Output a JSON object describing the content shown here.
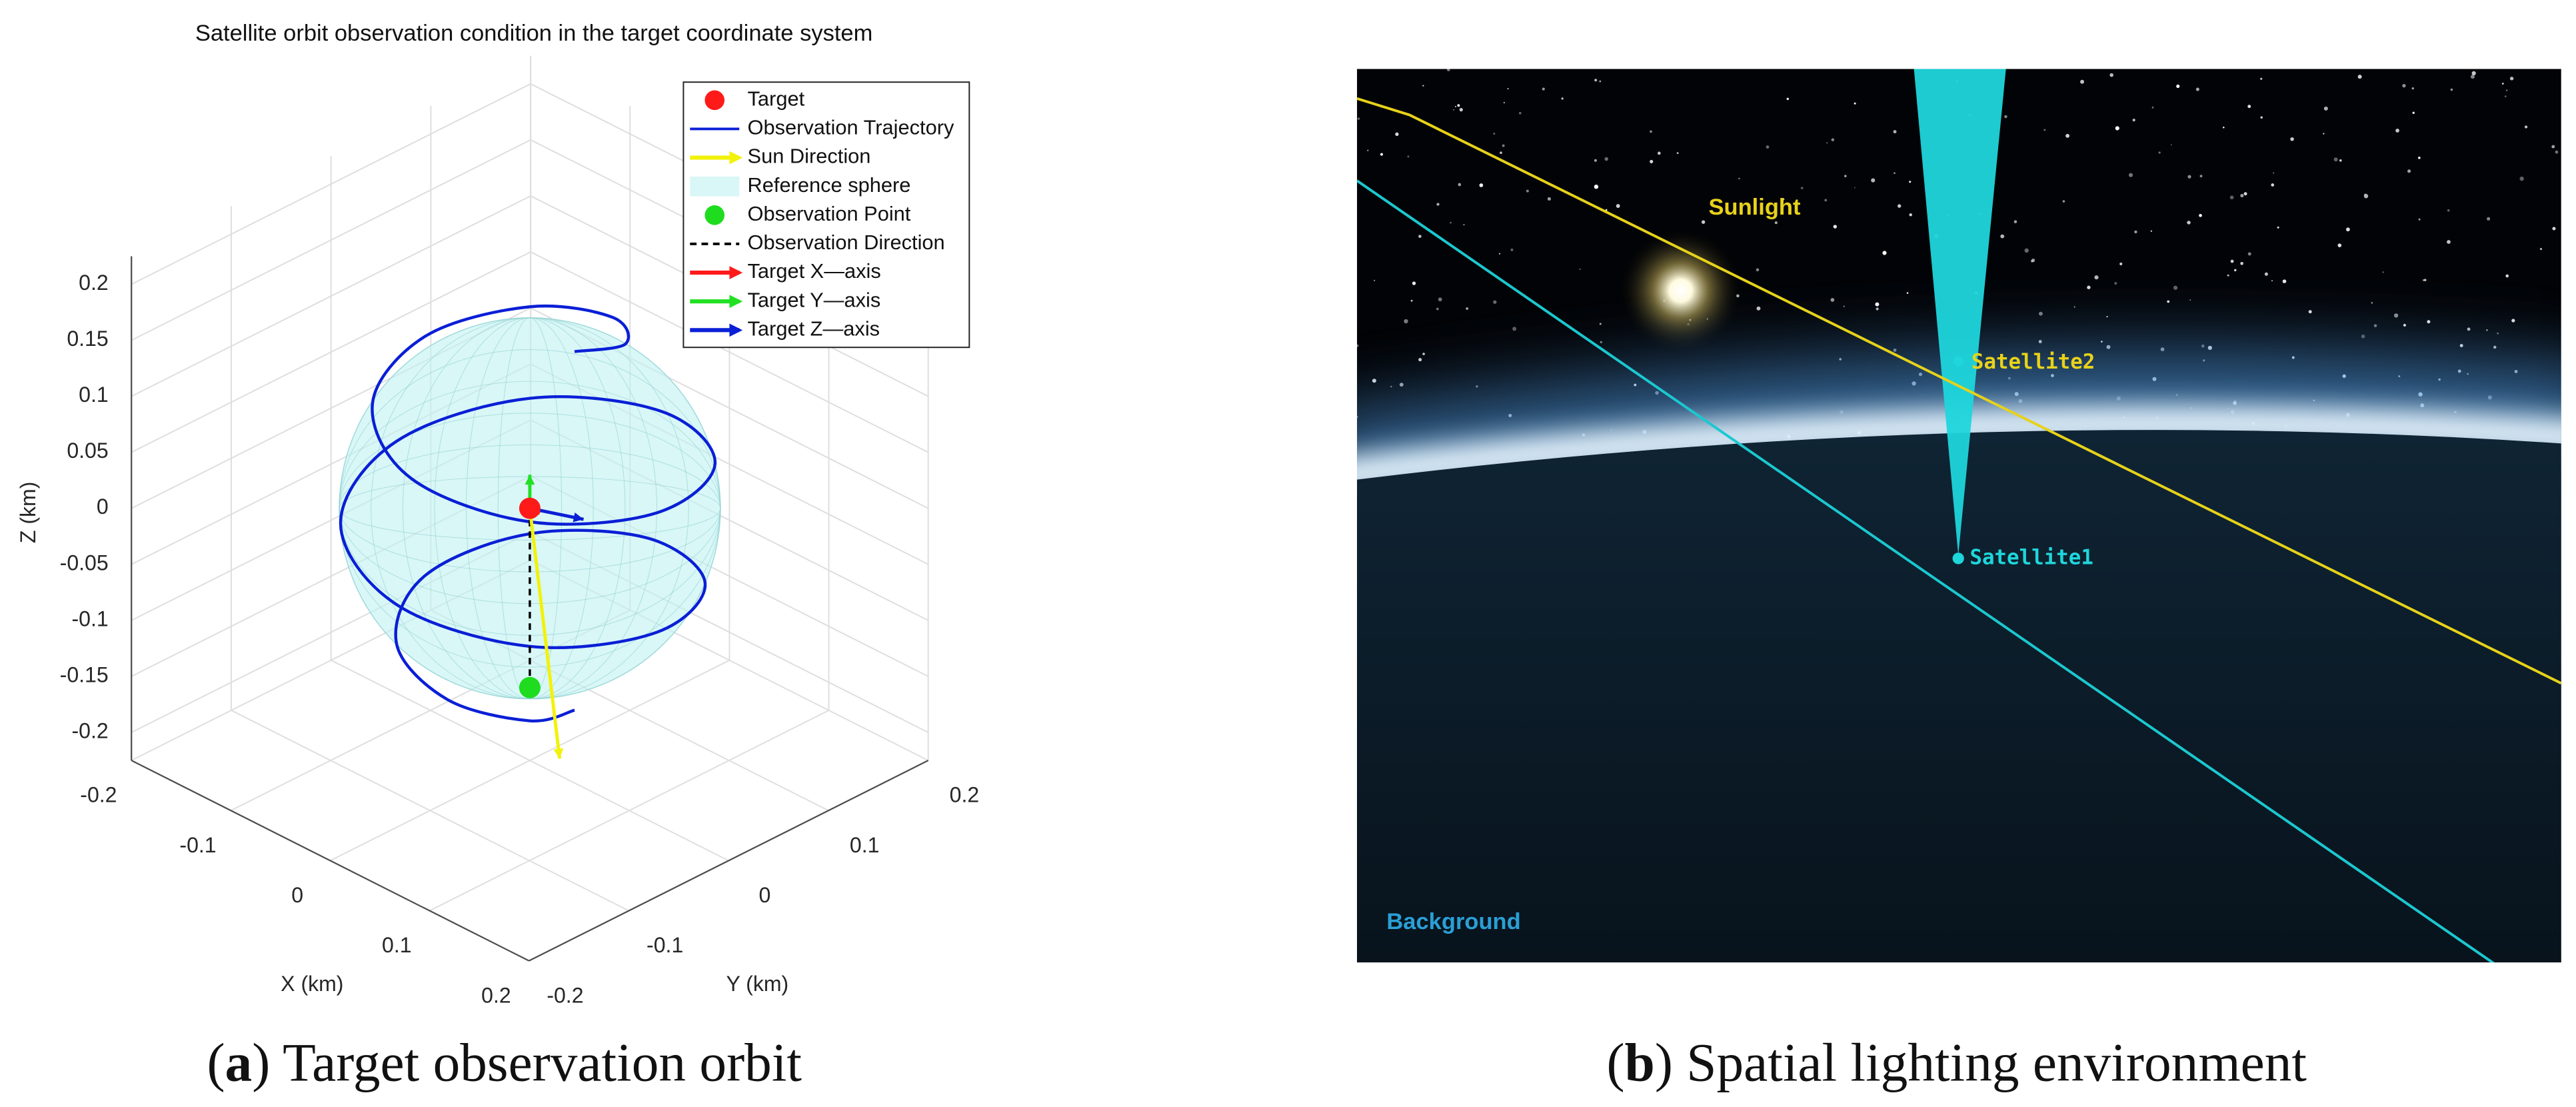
{
  "chart_data": {
    "type": "line3d",
    "title": "Satellite orbit observation condition in the target coordinate system",
    "xlabel": "X (km)",
    "ylabel": "Y (km)",
    "zlabel": "Z (km)",
    "xlim": [
      -0.2,
      0.2
    ],
    "ylim": [
      -0.2,
      0.2
    ],
    "zlim": [
      -0.225,
      0.225
    ],
    "xticks": [
      -0.2,
      -0.1,
      0,
      0.1,
      0.2
    ],
    "yticks": [
      -0.2,
      -0.1,
      0,
      0.1,
      0.2
    ],
    "zticks": [
      -0.2,
      -0.15,
      -0.1,
      -0.05,
      0,
      0.05,
      0.1,
      0.15,
      0.2
    ],
    "grid": true,
    "legend": "northeast",
    "series": [
      {
        "name": "Target",
        "style": "marker",
        "color": "#ff1a1a",
        "x": [
          0
        ],
        "y": [
          0
        ],
        "z": [
          0
        ]
      },
      {
        "name": "Observation Trajectory",
        "style": "line",
        "color": "#0a1fd6",
        "x": [
          0.045,
          0.048,
          0,
          -0.067,
          -0.105,
          -0.079,
          0,
          0.088,
          0.128,
          0.093,
          0,
          -0.095,
          -0.134,
          -0.095,
          0,
          0.093,
          0.128,
          0.088,
          0,
          -0.079,
          -0.105,
          -0.067,
          0,
          0.048,
          0.045
        ],
        "y": [
          0,
          0.048,
          0.083,
          0.067,
          0,
          -0.079,
          -0.119,
          -0.088,
          0,
          0.093,
          0.133,
          0.095,
          0,
          -0.095,
          -0.133,
          -0.093,
          0,
          0.088,
          0.119,
          0.079,
          0,
          -0.067,
          -0.083,
          -0.048,
          0
        ],
        "z": [
          0.16,
          0.1467,
          0.1333,
          0.12,
          0.1067,
          0.0933,
          0.08,
          0.0667,
          0.0533,
          0.04,
          0.0267,
          0.0133,
          0,
          -0.0133,
          -0.0267,
          -0.04,
          -0.0533,
          -0.0667,
          -0.08,
          -0.0933,
          -0.1067,
          -0.12,
          -0.1333,
          -0.1467,
          -0.16
        ]
      },
      {
        "name": "Sun Direction",
        "style": "arrow",
        "color": "#f2f20a",
        "x": [
          0,
          0.03
        ],
        "y": [
          0,
          0
        ],
        "z": [
          0,
          -0.21
        ]
      },
      {
        "name": "Reference sphere",
        "style": "sphere",
        "color": "#bff2f2",
        "x": [
          0
        ],
        "y": [
          0
        ],
        "z": [
          0
        ],
        "radius": 0.17
      },
      {
        "name": "Observation Point",
        "style": "marker",
        "color": "#1fdc1f",
        "x": [
          0
        ],
        "y": [
          0
        ],
        "z": [
          -0.16
        ]
      },
      {
        "name": "Observation Direction",
        "style": "dashed",
        "color": "#000000",
        "x": [
          0,
          0
        ],
        "y": [
          0,
          0
        ],
        "z": [
          0,
          -0.16
        ]
      },
      {
        "name": "Target X—axis",
        "style": "arrow",
        "color": "#ff1a1a",
        "x": [
          0,
          0.01
        ],
        "y": [
          0,
          0
        ],
        "z": [
          0,
          0
        ]
      },
      {
        "name": "Target Y—axis",
        "style": "arrow",
        "color": "#22e022",
        "x": [
          0,
          0
        ],
        "y": [
          0,
          0
        ],
        "z": [
          0,
          0.03
        ]
      },
      {
        "name": "Target Z—axis",
        "style": "arrow",
        "color": "#0a1fd6",
        "x": [
          0,
          0.038
        ],
        "y": [
          0,
          0.016
        ],
        "z": [
          0,
          0
        ]
      }
    ]
  },
  "scene": {
    "sunlight": "Sunlight",
    "satellite2": "Satellite2",
    "satellite1": "Satellite1",
    "background": "Background"
  },
  "captions": [
    [
      "(",
      "a",
      ") Target observation orbit"
    ],
    [
      "(",
      "b",
      ") Spatial lighting environment"
    ]
  ]
}
